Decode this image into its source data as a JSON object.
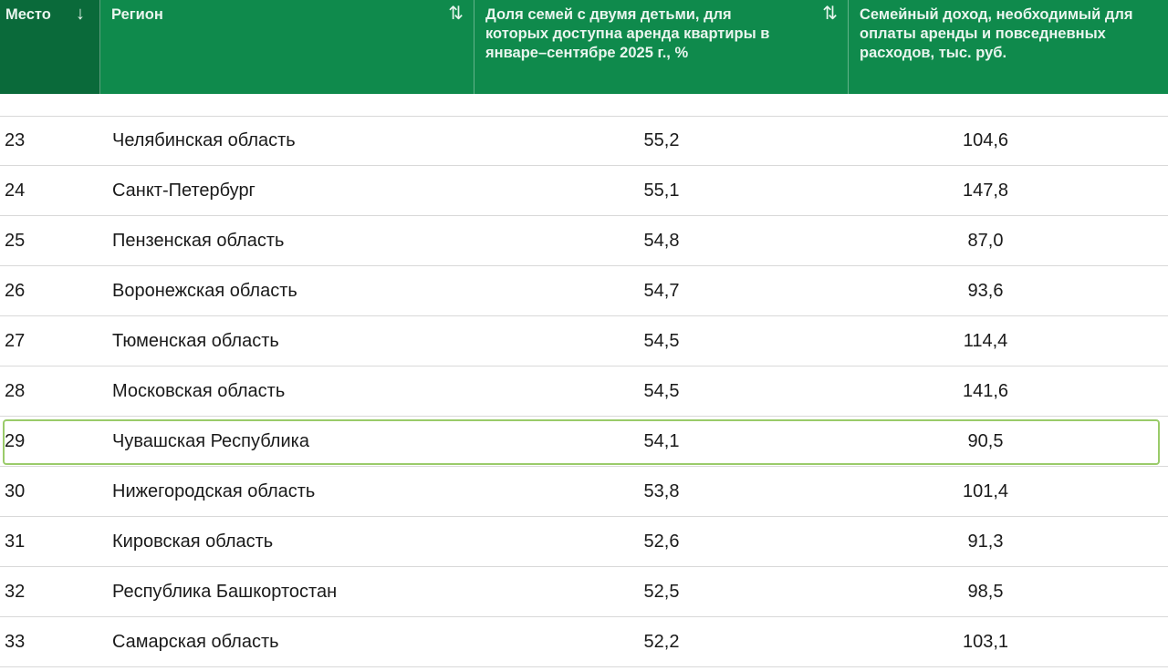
{
  "header": {
    "place": "Место",
    "region": "Регион",
    "share": "Доля семей с двумя детьми, для которых доступна аренда квартиры в январе–сентябре 2025 г., %",
    "income": "Семейный доход, необходимый для оплаты аренды и повседневных расходов, тыс. руб.",
    "sort_desc_icon": "↓",
    "sort_toggle_icon": "⇅"
  },
  "rows": [
    {
      "place": "23",
      "region": "Челябинская область",
      "share": "55,2",
      "income": "104,6"
    },
    {
      "place": "24",
      "region": "Санкт-Петербург",
      "share": "55,1",
      "income": "147,8"
    },
    {
      "place": "25",
      "region": "Пензенская область",
      "share": "54,8",
      "income": "87,0"
    },
    {
      "place": "26",
      "region": "Воронежская область",
      "share": "54,7",
      "income": "93,6"
    },
    {
      "place": "27",
      "region": "Тюменская область",
      "share": "54,5",
      "income": "114,4"
    },
    {
      "place": "28",
      "region": "Московская область",
      "share": "54,5",
      "income": "141,6"
    },
    {
      "place": "29",
      "region": "Чувашская Республика",
      "share": "54,1",
      "income": "90,5",
      "highlighted": true
    },
    {
      "place": "30",
      "region": "Нижегородская область",
      "share": "53,8",
      "income": "101,4"
    },
    {
      "place": "31",
      "region": "Кировская область",
      "share": "52,6",
      "income": "91,3"
    },
    {
      "place": "32",
      "region": "Республика Башкортостан",
      "share": "52,5",
      "income": "98,5"
    },
    {
      "place": "33",
      "region": "Самарская область",
      "share": "52,2",
      "income": "103,1"
    }
  ],
  "colors": {
    "header_bg": "#0f8a4c",
    "header_first_col_bg": "#0a6a3a",
    "highlight_border": "#9acb6a"
  }
}
